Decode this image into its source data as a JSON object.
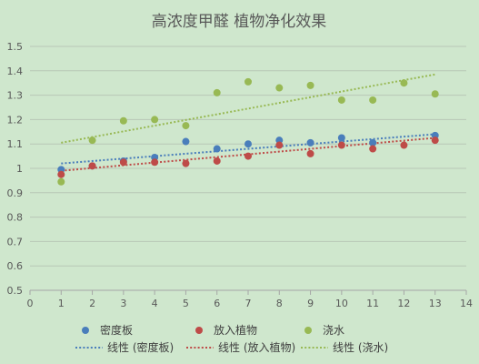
{
  "chart_data": {
    "type": "scatter",
    "title": "高浓度甲醛 植物净化效果",
    "xlim": [
      0,
      14
    ],
    "ylim": [
      0.5,
      1.5
    ],
    "x_ticks": [
      0,
      1,
      2,
      3,
      4,
      5,
      6,
      7,
      8,
      9,
      10,
      11,
      12,
      13,
      14
    ],
    "y_ticks": [
      "0.5",
      "0.6",
      "0.7",
      "0.8",
      "0.9",
      "1",
      "1.1",
      "1.2",
      "1.3",
      "1.4",
      "1.5"
    ],
    "grid": "horizontal",
    "legend_position": "bottom",
    "series": [
      {
        "name": "密度板",
        "color": "#4a7ebb",
        "x": [
          1,
          2,
          3,
          4,
          5,
          6,
          7,
          8,
          9,
          10,
          11,
          13
        ],
        "y": [
          0.995,
          1.01,
          1.03,
          1.045,
          1.11,
          1.08,
          1.1,
          1.115,
          1.105,
          1.125,
          1.105,
          1.135
        ]
      },
      {
        "name": "放入植物",
        "color": "#be4b48",
        "x": [
          1,
          2,
          3,
          4,
          5,
          6,
          7,
          8,
          9,
          10,
          11,
          12,
          13
        ],
        "y": [
          0.975,
          1.01,
          1.025,
          1.025,
          1.02,
          1.03,
          1.05,
          1.095,
          1.06,
          1.095,
          1.08,
          1.095,
          1.115
        ]
      },
      {
        "name": "浇水",
        "color": "#98b954",
        "x": [
          1,
          2,
          3,
          4,
          5,
          6,
          7,
          8,
          9,
          10,
          11,
          12,
          13
        ],
        "y": [
          0.945,
          1.115,
          1.195,
          1.2,
          1.175,
          1.31,
          1.355,
          1.33,
          1.34,
          1.28,
          1.28,
          1.35,
          1.305
        ]
      }
    ],
    "trendlines": [
      {
        "name": "线性 (密度板)",
        "color": "#4a7ebb",
        "x": [
          1,
          13
        ],
        "y": [
          1.02,
          1.14
        ]
      },
      {
        "name": "线性 (放入植物)",
        "color": "#be4b48",
        "x": [
          1,
          13
        ],
        "y": [
          0.99,
          1.125
        ]
      },
      {
        "name": "线性 (浇水)",
        "color": "#98b954",
        "x": [
          1,
          13
        ],
        "y": [
          1.105,
          1.385
        ]
      }
    ]
  }
}
